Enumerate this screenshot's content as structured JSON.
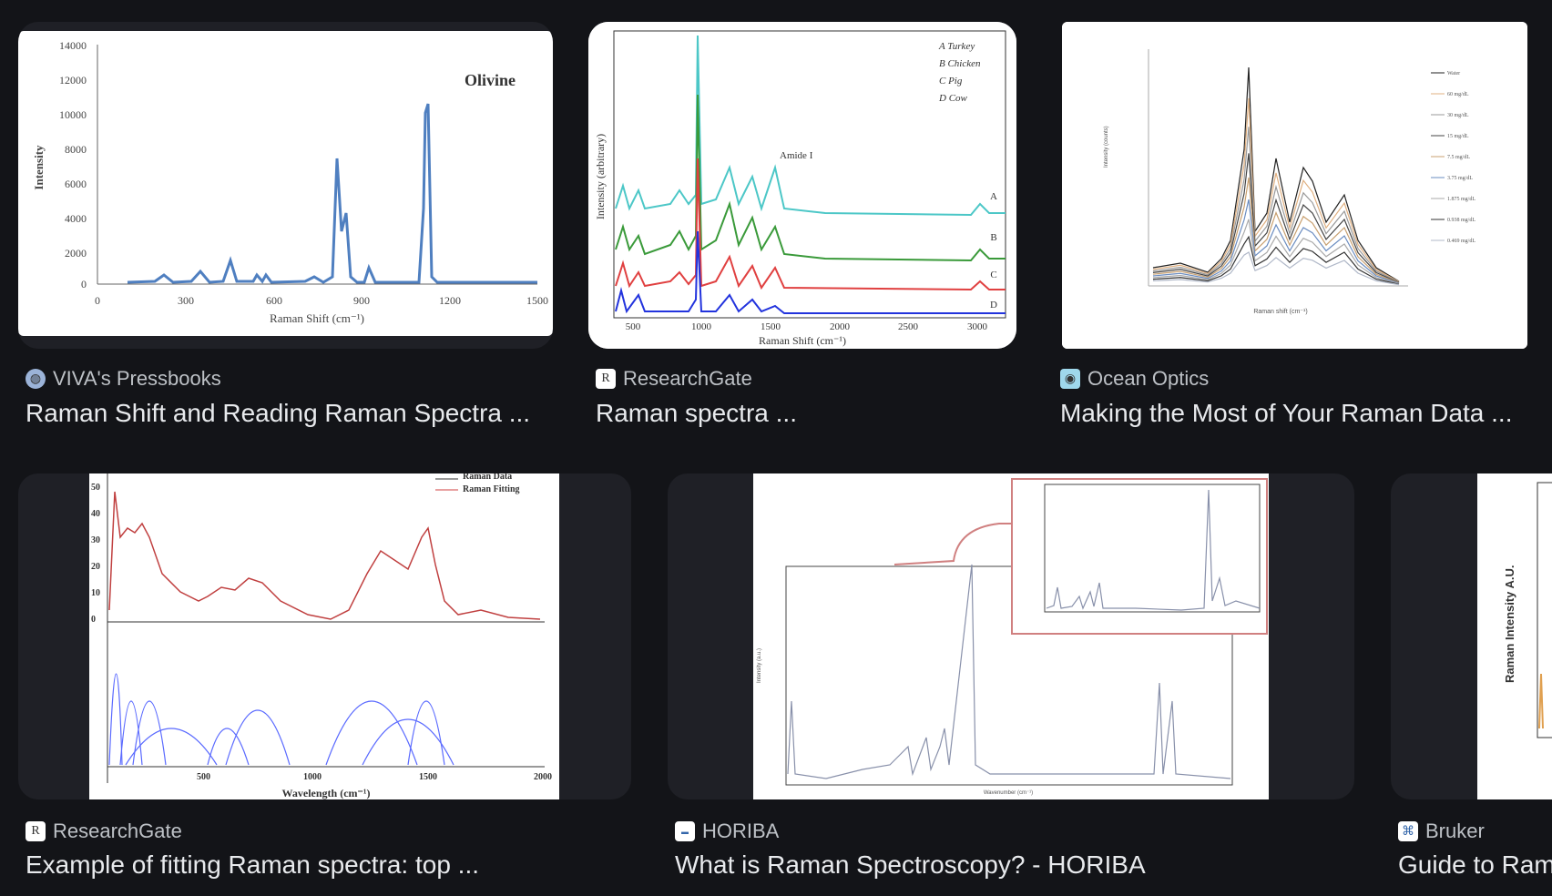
{
  "results": [
    {
      "source": "VIVA's Pressbooks",
      "title": "Raman Shift and Reading Raman Spectra ...",
      "favicon": "globe-icon",
      "image": {
        "label": "Olivine",
        "ylabel": "Intensity",
        "xlabel": "Raman Shift (cm⁻¹)",
        "yticks": [
          "14000",
          "12000",
          "10000",
          "8000",
          "6000",
          "4000",
          "2000",
          "0"
        ],
        "xticks": [
          "0",
          "300",
          "600",
          "900",
          "1200",
          "1500"
        ]
      }
    },
    {
      "source": "ResearchGate",
      "title": "Raman spectra ...",
      "favicon": "researchgate-icon",
      "image": {
        "legend": [
          "A  Turkey",
          "B  Chicken",
          "C  Pig",
          "D  Cow"
        ],
        "annotation": "Amide I",
        "ylabel": "Intensity (arbitrary)",
        "xlabel": "Raman Shift (cm⁻¹)",
        "xticks": [
          "500",
          "1000",
          "1500",
          "2000",
          "2500",
          "3000"
        ],
        "curves": [
          "A",
          "B",
          "C",
          "D"
        ]
      }
    },
    {
      "source": "Ocean Optics",
      "title": "Making the Most of Your Raman Data ...",
      "favicon": "ocean-optics-icon",
      "image": {
        "ylabel": "Intensity (counts)",
        "xlabel": "Raman shift (cm⁻¹)",
        "legend": [
          "Water",
          "60 mg/dL",
          "30 mg/dL",
          "15 mg/dL",
          "7.5 mg/dL",
          "3.75 mg/dL",
          "1.875 mg/dL",
          "0.938 mg/dL",
          "0.469 mg/dL"
        ]
      }
    },
    {
      "source": "ResearchGate",
      "title": "Example of fitting Raman spectra: top ...",
      "favicon": "researchgate-icon",
      "image": {
        "legend": [
          "Raman Data",
          "Raman Fitting"
        ],
        "xlabel": "Wavelength (cm⁻¹)",
        "xticks": [
          "500",
          "1000",
          "1500",
          "2000"
        ],
        "yticks": [
          "50",
          "40",
          "30",
          "20",
          "10",
          "0"
        ]
      }
    },
    {
      "source": "HORIBA",
      "title": "What is Raman Spectroscopy? - HORIBA",
      "favicon": "horiba-icon",
      "image": {
        "xlabel": "Wavenumber (cm⁻¹)",
        "ylabel": "Intensity (a.u.)"
      }
    },
    {
      "source": "Bruker",
      "title": "Guide to Raman Spectroscopy",
      "favicon": "bruker-icon",
      "image": {
        "ylabel": "Raman Intensity A.U."
      }
    }
  ]
}
